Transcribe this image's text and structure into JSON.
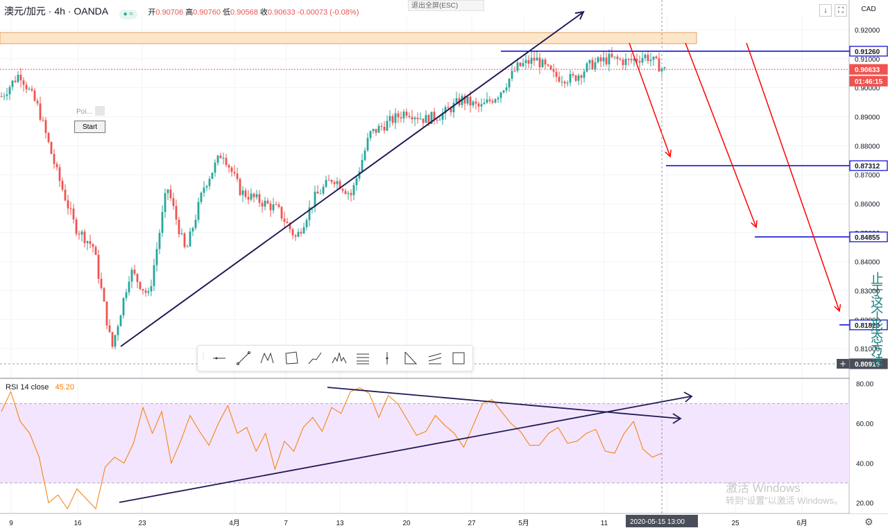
{
  "header": {
    "symbol": "澳元/加元 · 4h · OANDA",
    "ohlc": {
      "open_label": "开",
      "open": "0.90706",
      "high_label": "高",
      "high": "0.90760",
      "low_label": "低",
      "low": "0.90568",
      "close_label": "收",
      "close": "0.90633",
      "change": "-0.00073 (-0.08%)"
    },
    "esc_hint": "退出全屏(ESC)",
    "currency": "CAD",
    "buttons": [
      "down-arrow-icon",
      "fullscreen-icon"
    ]
  },
  "widget": {
    "poi_label": "Poi...",
    "start_label": "Start"
  },
  "drawing_toolbar": {
    "tools": [
      "horizontal-line-icon",
      "trend-line-icon",
      "xabcd-pattern-icon",
      "rectangle-icon",
      "path-icon",
      "head-shoulders-icon",
      "fib-retracement-icon",
      "vertical-line-icon",
      "triangle-icon",
      "parallel-channel-icon",
      "box-icon"
    ]
  },
  "price_axis": {
    "labels": [
      "0.92000",
      "0.91000",
      "0.90000",
      "0.89000",
      "0.88000",
      "0.87000",
      "0.86000",
      "0.85000",
      "0.84000",
      "0.83000",
      "0.82000",
      "0.81000",
      "0.80000"
    ],
    "markers": [
      {
        "value": "0.91260",
        "style": "blue-outline"
      },
      {
        "value": "0.90633",
        "style": "red"
      },
      {
        "value": "01:46:15",
        "style": "red"
      },
      {
        "value": "0.87312",
        "style": "blue-outline"
      },
      {
        "value": "0.84855",
        "style": "blue-outline"
      },
      {
        "value": "0.81820",
        "style": "blue-outline"
      },
      {
        "value": "0.80916",
        "style": "dark"
      }
    ]
  },
  "time_axis": {
    "labels": [
      "9",
      "16",
      "23",
      "4月",
      "7",
      "13",
      "20",
      "27",
      "5月",
      "11",
      "18",
      "25",
      "6月"
    ],
    "cursor_date": "2020-05-15",
    "cursor_time": "13:00"
  },
  "rsi": {
    "label": "RSI 14 close",
    "value": "45.20",
    "axis_labels": [
      "80.00",
      "60.00",
      "40.00",
      "20.00"
    ],
    "band": [
      30,
      70
    ],
    "color": "#f57c00",
    "band_color": "#f3e5fd"
  },
  "watermark": {
    "line1": "激活 Windows",
    "line2": "转到“设置”以激活 Windows。"
  },
  "side_text": "止于这个形态方法",
  "colors": {
    "up": "#26a69a",
    "down": "#ef5350",
    "analysis_blue": "#0000cc",
    "analysis_red": "#ff0000",
    "trend_navy": "#1f1a55",
    "zone_fill": "#fde6c8"
  },
  "chart_data": [
    {
      "type": "candlestick",
      "symbol": "AUD/CAD",
      "timeframe": "4h",
      "y_axis": {
        "range": [
          0.8,
          0.925
        ]
      },
      "x_axis": {
        "ticks": [
          "9",
          "16",
          "23",
          "4月",
          "7",
          "13",
          "20",
          "27",
          "5月",
          "11",
          "18",
          "25",
          "6月"
        ]
      },
      "key_levels": [
        0.9126,
        0.90633,
        0.87312,
        0.84855,
        0.8182
      ],
      "approx_path": [
        {
          "x": "9",
          "close": 0.897
        },
        {
          "x": "10",
          "close": 0.905
        },
        {
          "x": "12",
          "close": 0.893
        },
        {
          "x": "14",
          "close": 0.871
        },
        {
          "x": "16",
          "close": 0.852
        },
        {
          "x": "18",
          "close": 0.845
        },
        {
          "x": "19",
          "close": 0.81
        },
        {
          "x": "21",
          "close": 0.837
        },
        {
          "x": "22",
          "close": 0.828
        },
        {
          "x": "24",
          "close": 0.866
        },
        {
          "x": "26",
          "close": 0.843
        },
        {
          "x": "28",
          "close": 0.866
        },
        {
          "x": "30",
          "close": 0.878
        },
        {
          "x": "31",
          "close": 0.864
        },
        {
          "x": "4月",
          "close": 0.861
        },
        {
          "x": "3",
          "close": 0.858
        },
        {
          "x": "5",
          "close": 0.848
        },
        {
          "x": "7",
          "close": 0.862
        },
        {
          "x": "9",
          "close": 0.869
        },
        {
          "x": "10",
          "close": 0.863
        },
        {
          "x": "11",
          "close": 0.884
        },
        {
          "x": "13",
          "close": 0.888
        },
        {
          "x": "15",
          "close": 0.892
        },
        {
          "x": "17",
          "close": 0.889
        },
        {
          "x": "20",
          "close": 0.891
        },
        {
          "x": "22",
          "close": 0.896
        },
        {
          "x": "24",
          "close": 0.893
        },
        {
          "x": "27",
          "close": 0.898
        },
        {
          "x": "29",
          "close": 0.907
        },
        {
          "x": "5月",
          "close": 0.91
        },
        {
          "x": "5",
          "close": 0.904
        },
        {
          "x": "7",
          "close": 0.903
        },
        {
          "x": "9",
          "close": 0.908
        },
        {
          "x": "11",
          "close": 0.91
        },
        {
          "x": "13",
          "close": 0.909
        },
        {
          "x": "14",
          "close": 0.911
        },
        {
          "x": "15",
          "close": 0.906
        }
      ]
    },
    {
      "type": "line",
      "title": "RSI 14 close",
      "y_axis": {
        "range": [
          15,
          82
        ],
        "ticks": [
          80,
          60,
          40,
          20
        ]
      },
      "band": [
        30,
        70
      ],
      "current": 45.2,
      "approx_values": [
        66,
        76,
        61,
        55,
        43,
        20,
        24,
        17,
        27,
        22,
        17,
        38,
        43,
        40,
        50,
        68,
        55,
        66,
        40,
        51,
        64,
        56,
        49,
        60,
        69,
        55,
        58,
        46,
        55,
        37,
        51,
        46,
        58,
        63,
        56,
        68,
        65,
        76,
        78,
        75,
        63,
        74,
        70,
        62,
        54,
        56,
        64,
        59,
        55,
        48,
        59,
        70,
        72,
        66,
        60,
        56,
        49,
        49,
        55,
        58,
        50,
        51,
        55,
        57,
        46,
        45,
        55,
        61,
        47,
        43,
        45
      ]
    }
  ]
}
